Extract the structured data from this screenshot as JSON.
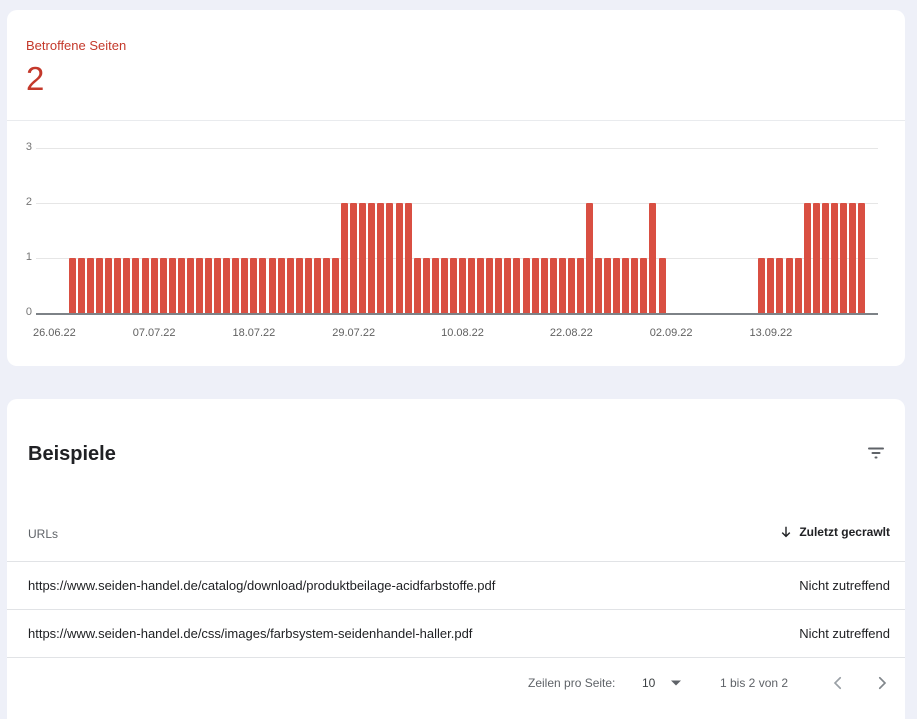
{
  "page": {
    "background": "#eef0f8"
  },
  "summary_card": {
    "title": "Betroffene Seiten",
    "count": "2",
    "accent_color": "#c4392b"
  },
  "chart_data": {
    "type": "bar",
    "title": "Betroffene Seiten",
    "bar_color": "#d94f42",
    "ylim": [
      0,
      3
    ],
    "y_tick_labels": [
      "3",
      "2",
      "1",
      "0"
    ],
    "x_tick_labels": [
      "26.06.22",
      "07.07.22",
      "18.07.22",
      "29.07.22",
      "10.08.22",
      "22.08.22",
      "02.09.22",
      "13.09.22"
    ],
    "x_tick_day_index": [
      -2,
      9,
      20,
      31,
      43,
      55,
      66,
      77
    ],
    "grid": true,
    "legend": "none",
    "values": [
      1,
      1,
      1,
      1,
      1,
      1,
      1,
      1,
      1,
      1,
      1,
      1,
      1,
      1,
      1,
      1,
      1,
      1,
      1,
      1,
      1,
      1,
      1,
      1,
      1,
      1,
      1,
      1,
      1,
      1,
      2,
      2,
      2,
      2,
      2,
      2,
      2,
      2,
      1,
      1,
      1,
      1,
      1,
      1,
      1,
      1,
      1,
      1,
      1,
      1,
      1,
      1,
      1,
      1,
      1,
      1,
      1,
      2,
      1,
      1,
      1,
      1,
      1,
      1,
      2,
      1,
      0,
      0,
      0,
      0,
      0,
      0,
      0,
      0,
      0,
      0,
      1,
      1,
      1,
      1,
      1,
      2,
      2,
      2,
      2,
      2,
      2,
      2
    ]
  },
  "examples_card": {
    "title": "Beispiele",
    "filter_icon": "filter-list-icon",
    "table": {
      "url_column_label": "URLs",
      "sort_column_label": "Zuletzt gecrawlt",
      "sort_icon": "arrow-downward-icon",
      "rows": [
        {
          "url": "https://www.seiden-handel.de/catalog/download/produktbeilage-acidfarbstoffe.pdf",
          "last_crawled": "Nicht zutreffend"
        },
        {
          "url": "https://www.seiden-handel.de/css/images/farbsystem-seidenhandel-haller.pdf",
          "last_crawled": "Nicht zutreffend"
        }
      ]
    },
    "pagination": {
      "rows_per_page_label": "Zeilen pro Seite:",
      "rows_per_page_value": "10",
      "range_label": "1 bis 2 von 2"
    }
  }
}
